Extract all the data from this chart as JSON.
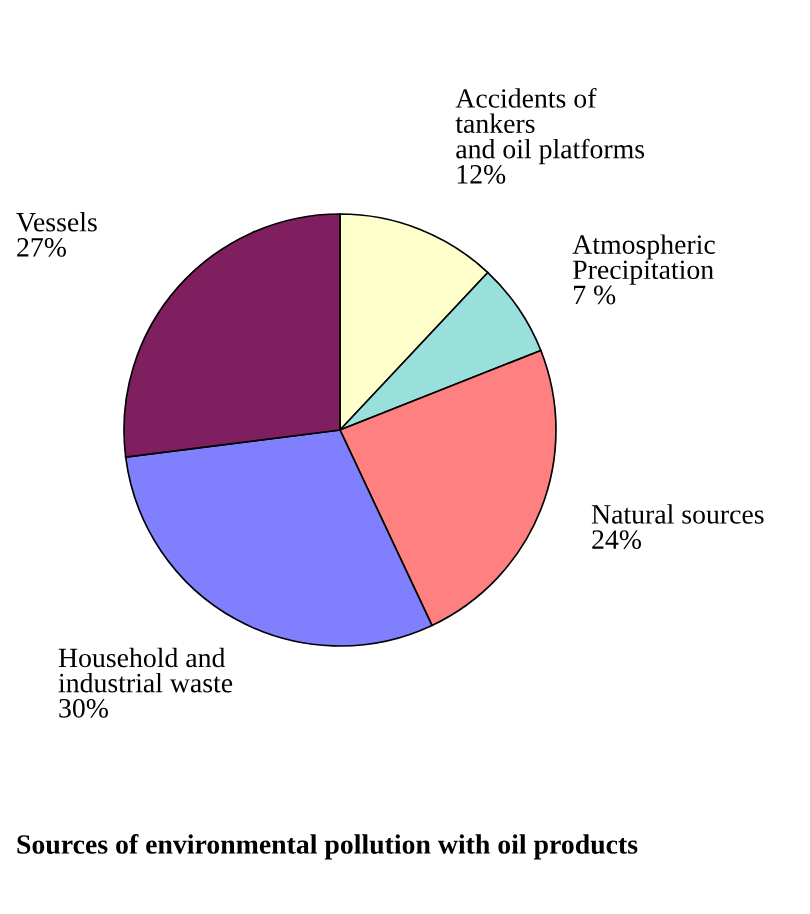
{
  "chart_data": {
    "type": "pie",
    "title": "Sources of environmental pollution with oil products",
    "categories": [
      "Accidents of\ntankers\nand oil platforms",
      "Atmospheric\nPrecipitation",
      "Natural sources",
      "Household and\nindustrial waste",
      "Vessels"
    ],
    "values": [
      12,
      7,
      24,
      30,
      27
    ],
    "value_labels": [
      "12%",
      "7 %",
      "24%",
      "30%",
      "27%"
    ],
    "colors": [
      "#ffffcc",
      "#99e0dc",
      "#ff8080",
      "#8080ff",
      "#7f1f5f"
    ],
    "legend": false
  }
}
